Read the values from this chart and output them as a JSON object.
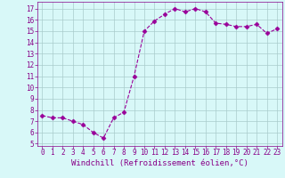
{
  "x": [
    0,
    1,
    2,
    3,
    4,
    5,
    6,
    7,
    8,
    9,
    10,
    11,
    12,
    13,
    14,
    15,
    16,
    17,
    18,
    19,
    20,
    21,
    22,
    23
  ],
  "y": [
    7.5,
    7.3,
    7.3,
    7.0,
    6.7,
    6.0,
    5.5,
    7.3,
    7.8,
    11.0,
    15.0,
    15.9,
    16.5,
    17.0,
    16.7,
    17.0,
    16.7,
    15.7,
    15.6,
    15.4,
    15.4,
    15.6,
    14.8,
    15.2
  ],
  "line_color": "#990099",
  "marker": "D",
  "marker_size": 2.5,
  "bg_color": "#d8f8f8",
  "grid_color": "#aacccc",
  "xlabel": "Windchill (Refroidissement éolien,°C)",
  "xlabel_color": "#880088",
  "ylabel_ticks": [
    5,
    6,
    7,
    8,
    9,
    10,
    11,
    12,
    13,
    14,
    15,
    16,
    17
  ],
  "xlim": [
    -0.5,
    23.5
  ],
  "ylim": [
    4.8,
    17.6
  ],
  "tick_color": "#880088",
  "tick_fontsize": 5.5,
  "label_fontsize": 6.5,
  "spine_color": "#880088"
}
